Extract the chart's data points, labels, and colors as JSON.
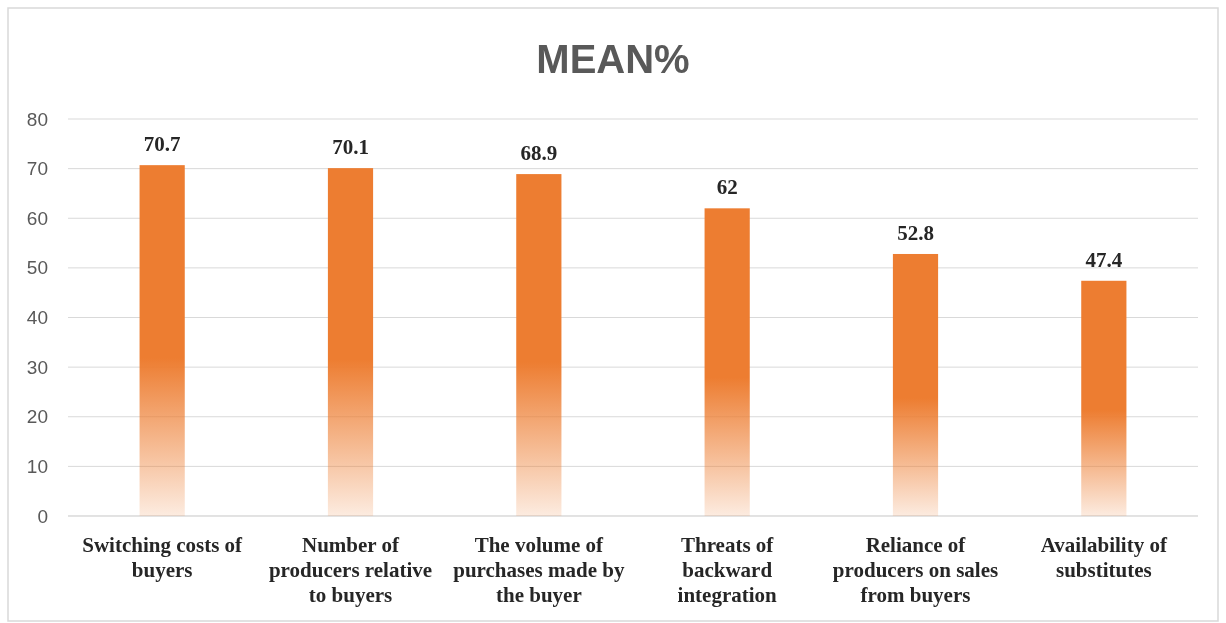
{
  "chart_data": {
    "type": "bar",
    "title": "MEAN%",
    "categories": [
      "Switching costs of buyers",
      "Number of producers relative to buyers",
      "The volume of purchases made by the buyer",
      "Threats of backward integration",
      "Reliance of producers on sales from buyers",
      "Availability of substitutes"
    ],
    "values": [
      70.7,
      70.1,
      68.9,
      62,
      52.8,
      47.4
    ],
    "color": "#ed7d31",
    "ylim": [
      0,
      80
    ],
    "yticks": [
      0,
      10,
      20,
      30,
      40,
      50,
      60,
      70,
      80
    ],
    "grid": "y",
    "data_labels": true
  }
}
